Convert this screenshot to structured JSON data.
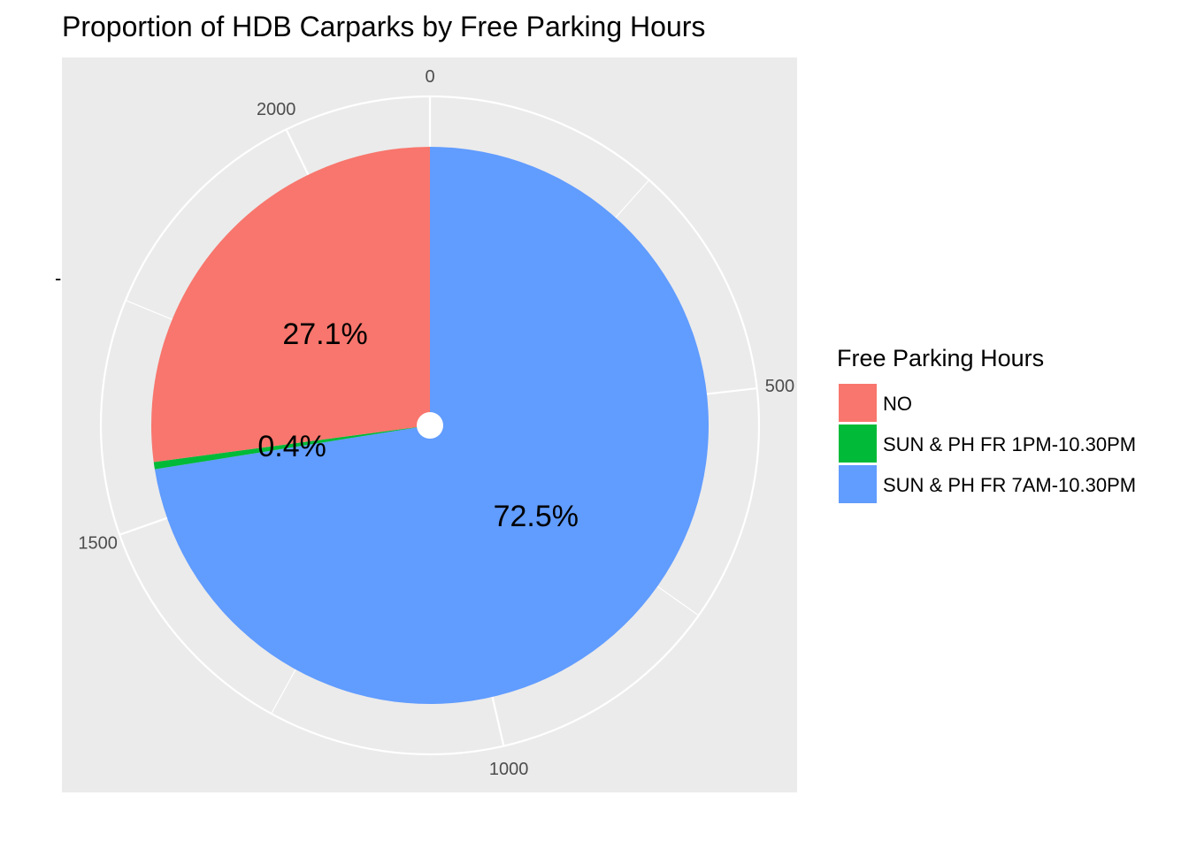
{
  "chart_data": {
    "type": "pie",
    "title": "Proportion of HDB Carparks by Free Parking Hours",
    "xlabel": "",
    "ylabel": "",
    "y_axis_tick": "-",
    "grid": true,
    "legend": {
      "title": "Free Parking Hours",
      "placement": "right"
    },
    "categories": [
      "NO",
      "SUN & PH FR 1PM-10.30PM",
      "SUN & PH FR 7AM-10.30PM"
    ],
    "values": [
      584,
      9,
      1562
    ],
    "percent_labels": [
      "27.1%",
      "0.4%",
      "72.5%"
    ],
    "colors": [
      "#F8766D",
      "#00BA38",
      "#619CFF"
    ],
    "theta_ticks": [
      {
        "value": 0,
        "label": "0"
      },
      {
        "value": 500,
        "label": "500"
      },
      {
        "value": 1000,
        "label": "1000"
      },
      {
        "value": 1500,
        "label": "1500"
      },
      {
        "value": 2000,
        "label": "2000"
      }
    ],
    "theta_range": [
      0,
      2155
    ]
  }
}
